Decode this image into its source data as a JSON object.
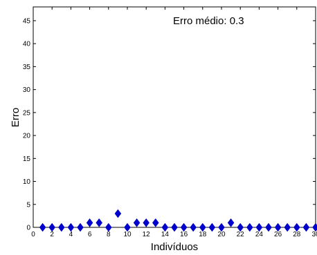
{
  "chart_data": {
    "type": "scatter",
    "title": "",
    "xlabel": "Indivíduos",
    "ylabel": "Erro",
    "xlim": [
      0,
      30
    ],
    "ylim": [
      0,
      48
    ],
    "xticks": [
      0,
      2,
      4,
      6,
      8,
      10,
      12,
      14,
      16,
      18,
      20,
      22,
      24,
      26,
      28,
      30
    ],
    "yticks": [
      0,
      5,
      10,
      15,
      20,
      25,
      30,
      35,
      40,
      45
    ],
    "grid": false,
    "annotation": "Erro médio: 0.3",
    "marker": "diamond",
    "color": "#0000cc",
    "series": [
      {
        "x": [
          1,
          2,
          3,
          4,
          5,
          6,
          7,
          8,
          9,
          10,
          11,
          12,
          13,
          14,
          15,
          16,
          17,
          18,
          19,
          20,
          21,
          22,
          23,
          24,
          25,
          26,
          27,
          28,
          29,
          30
        ],
        "y": [
          0,
          0,
          0,
          0,
          0,
          1,
          1,
          0,
          3,
          0,
          1,
          1,
          1,
          0,
          0,
          0,
          0,
          0,
          0,
          0,
          1,
          0,
          0,
          0,
          0,
          0,
          0,
          0,
          0,
          0
        ]
      }
    ]
  }
}
